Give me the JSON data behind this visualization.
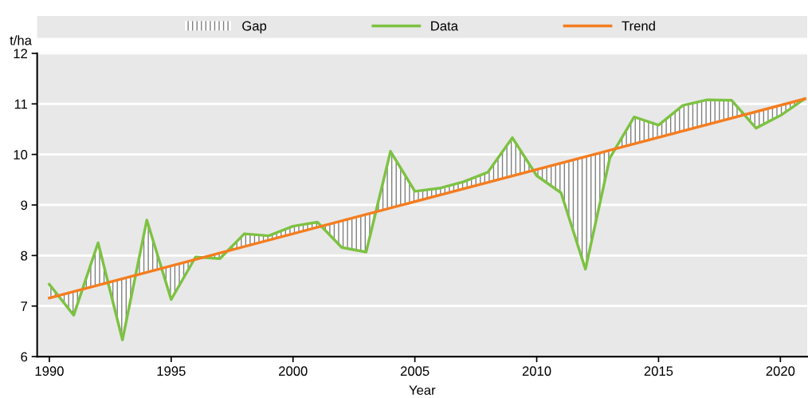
{
  "chart_data": {
    "type": "line",
    "ylabel": "t/ha",
    "xlabel": "Year",
    "xlim": [
      1989.5,
      2021.1
    ],
    "xticks": [
      1990,
      1995,
      2000,
      2005,
      2010,
      2015,
      2020
    ],
    "ylim": [
      6,
      12
    ],
    "yticks": [
      6,
      7,
      8,
      9,
      10,
      11,
      12
    ],
    "grid": "y",
    "legend": "top",
    "marker": "none",
    "line_style": "solid",
    "series": [
      {
        "name": "Gap",
        "type": "area",
        "color": "#7f7f7f",
        "x": [
          1990,
          1991,
          1992,
          1993,
          1994,
          1995,
          1996,
          1997,
          1998,
          1999,
          2000,
          2001,
          2002,
          2003,
          2004,
          2005,
          2006,
          2007,
          2008,
          2009,
          2010,
          2011,
          2012,
          2013,
          2014,
          2015,
          2016,
          2017,
          2018,
          2019,
          2020,
          2021
        ],
        "values": [
          null,
          null,
          null,
          null,
          null,
          null,
          null,
          null,
          null,
          null,
          null,
          null,
          null,
          null,
          null,
          null,
          null,
          null,
          null,
          null,
          null,
          null,
          null,
          null,
          null,
          null,
          null,
          null,
          null,
          null,
          null,
          null
        ],
        "lower": [
          7.16,
          7.29,
          7.41,
          7.54,
          7.67,
          7.8,
          7.92,
          8.05,
          8.18,
          8.3,
          8.43,
          8.56,
          8.69,
          8.81,
          8.94,
          9.07,
          9.19,
          9.32,
          9.45,
          9.57,
          9.7,
          9.83,
          9.96,
          10.08,
          10.21,
          10.34,
          10.46,
          10.59,
          10.72,
          10.85,
          10.97,
          11.1
        ],
        "upper": [
          7.43,
          6.82,
          8.25,
          6.33,
          8.7,
          7.13,
          7.97,
          7.94,
          8.43,
          8.39,
          8.58,
          8.66,
          8.16,
          8.07,
          10.06,
          9.27,
          9.33,
          9.46,
          9.65,
          10.33,
          9.58,
          9.24,
          7.73,
          9.93,
          10.74,
          10.58,
          10.97,
          11.08,
          11.07,
          10.52,
          10.77,
          11.1
        ]
      },
      {
        "name": "Data",
        "color": "#7dc242",
        "x": [
          1990,
          1991,
          1992,
          1993,
          1994,
          1995,
          1996,
          1997,
          1998,
          1999,
          2000,
          2001,
          2002,
          2003,
          2004,
          2005,
          2006,
          2007,
          2008,
          2009,
          2010,
          2011,
          2012,
          2013,
          2014,
          2015,
          2016,
          2017,
          2018,
          2019,
          2020,
          2021
        ],
        "values": [
          7.43,
          6.82,
          8.25,
          6.33,
          8.7,
          7.13,
          7.97,
          7.94,
          8.43,
          8.39,
          8.58,
          8.66,
          8.16,
          8.07,
          10.06,
          9.27,
          9.33,
          9.46,
          9.65,
          10.33,
          9.58,
          9.24,
          7.73,
          9.93,
          10.74,
          10.58,
          10.97,
          11.08,
          11.07,
          10.52,
          10.77,
          11.1
        ]
      },
      {
        "name": "Trend",
        "type": "line",
        "color": "#f47d20",
        "x": [
          1990,
          2021
        ],
        "values": [
          7.16,
          11.1
        ]
      }
    ]
  }
}
